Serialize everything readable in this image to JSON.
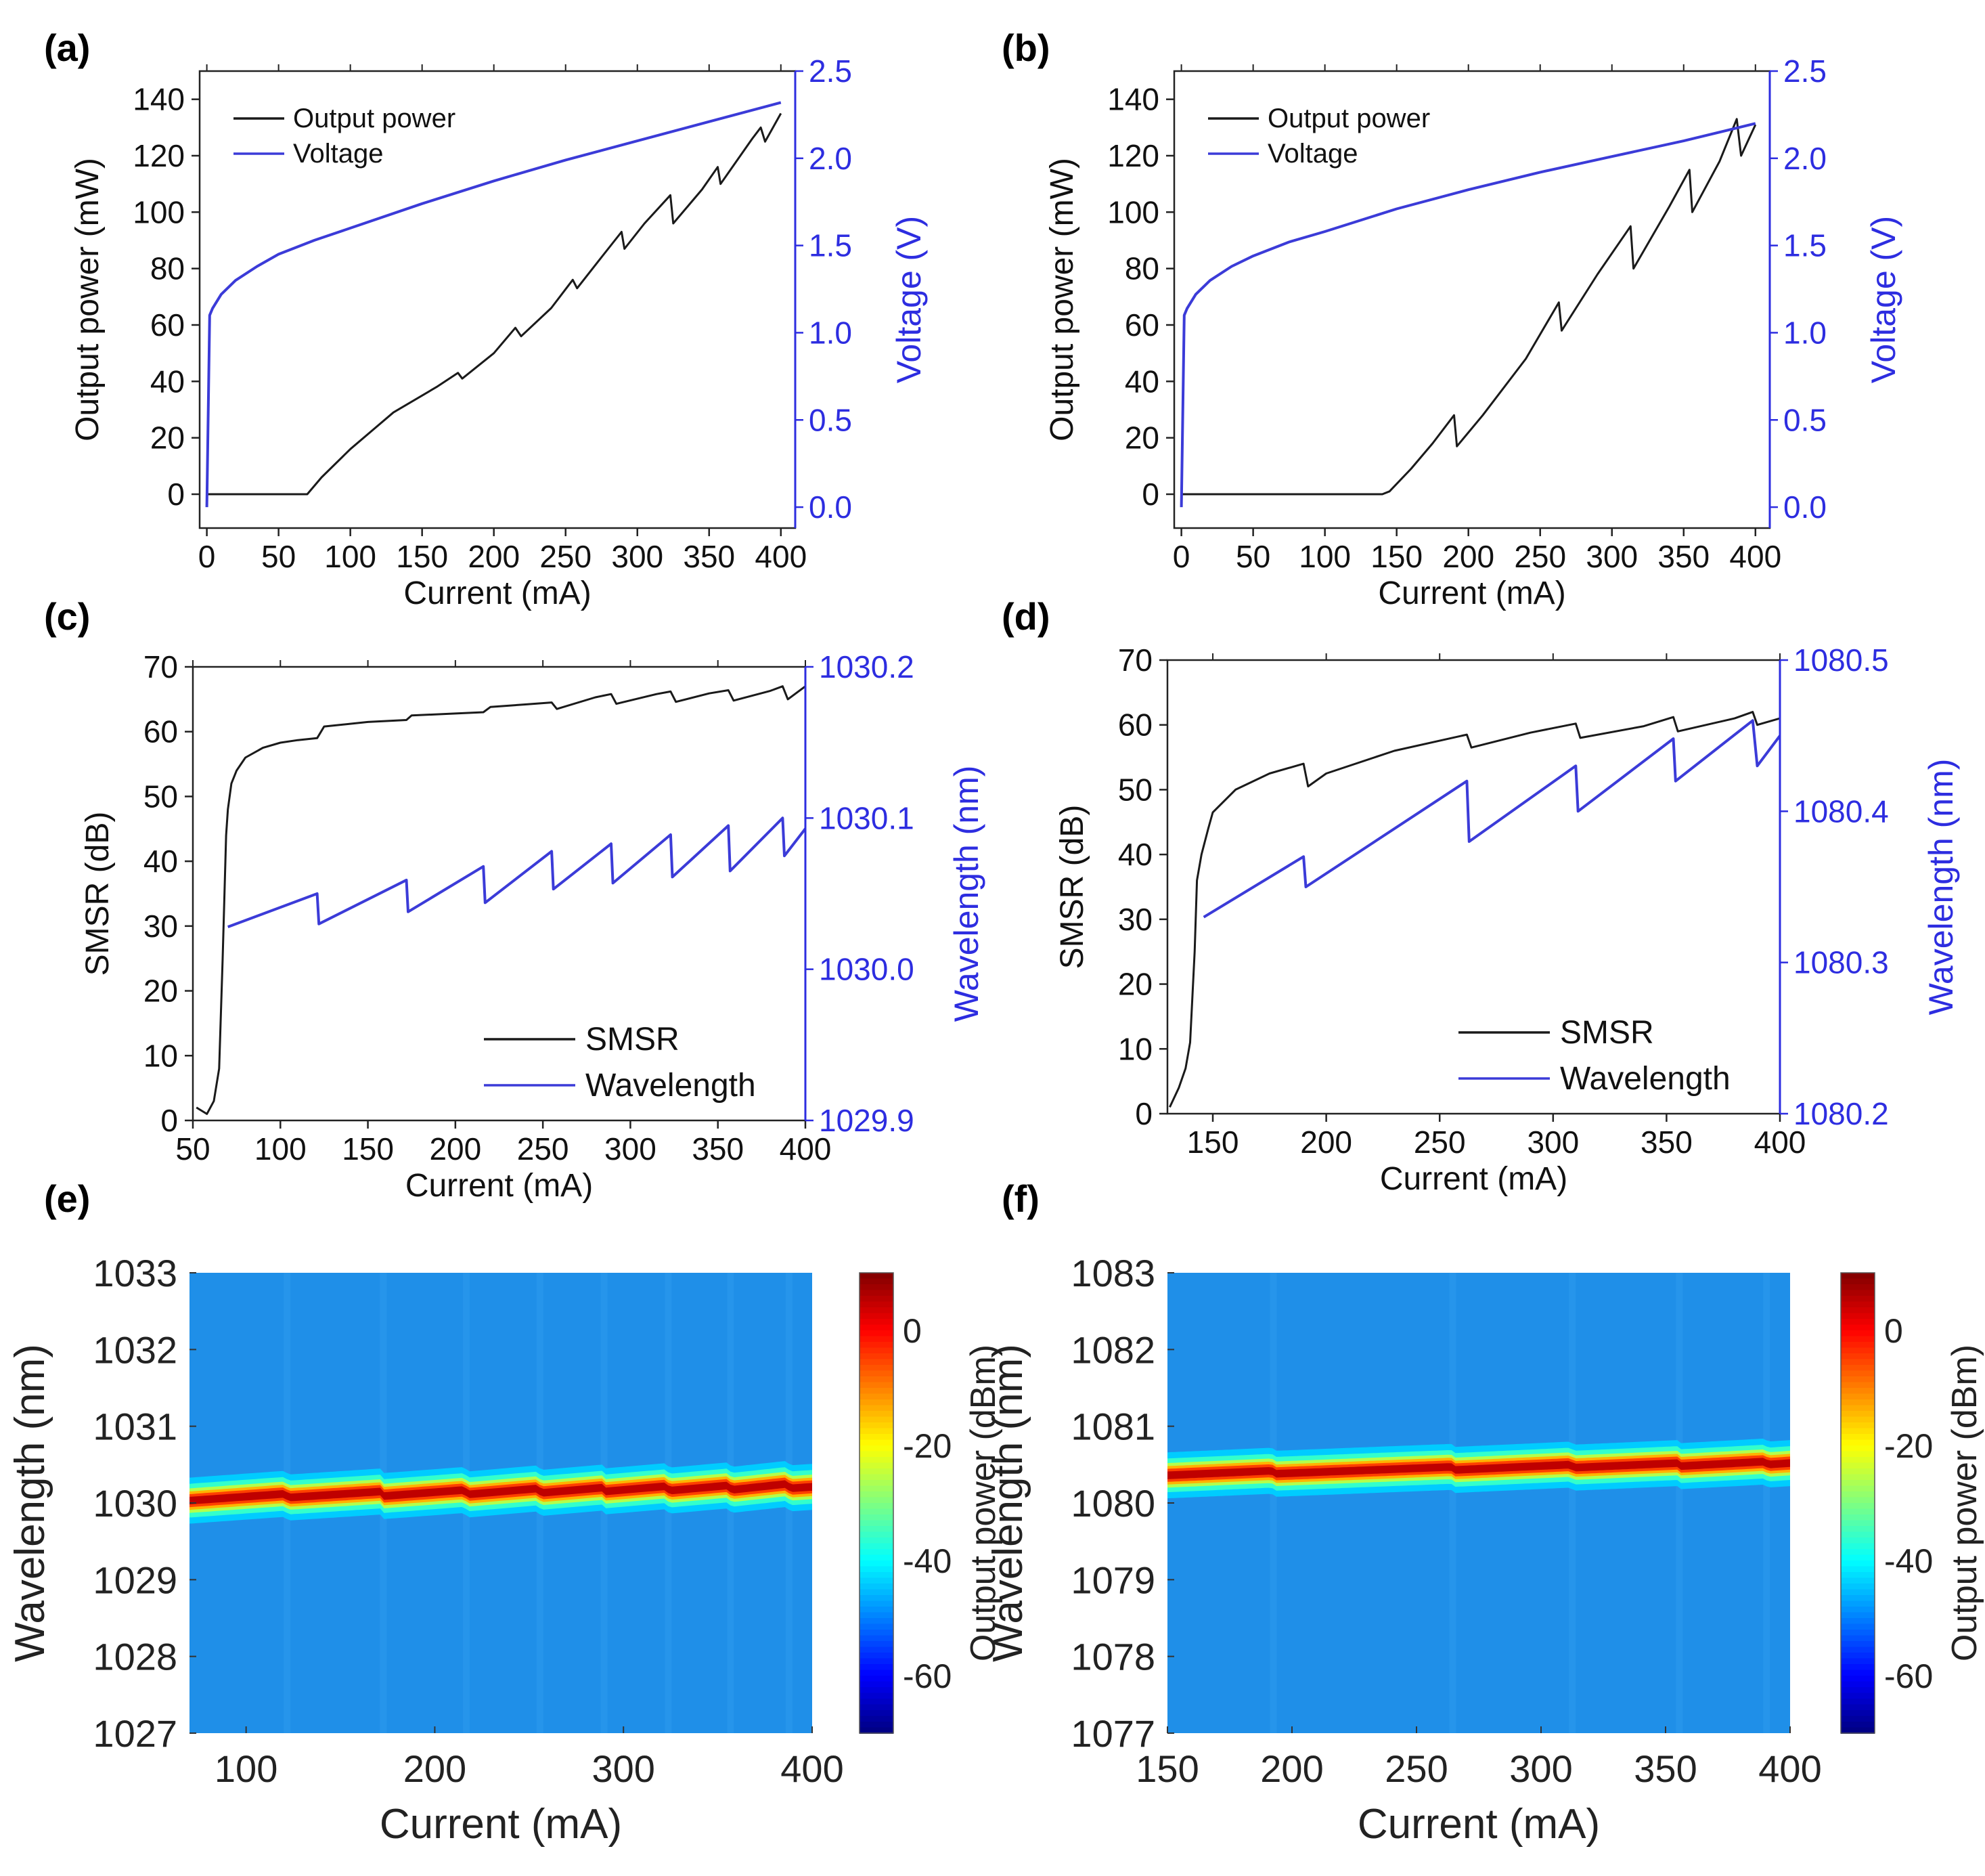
{
  "colors": {
    "black_series": "#1a1a1a",
    "blue_series": "#3b3bd8",
    "blue_axis": "#2d2de0",
    "heatmap_background": "#1f8fe8"
  },
  "chart_data": [
    {
      "id": "a",
      "panel_label": "(a)",
      "type": "line",
      "xlabel": "Current (mA)",
      "ylabel": "Output power (mW)",
      "y2label": "Voltage (V)",
      "xlim": [
        -5,
        410
      ],
      "ylim": [
        -12,
        150
      ],
      "y2lim": [
        -0.12,
        2.5
      ],
      "xticks": [
        0,
        50,
        100,
        150,
        200,
        250,
        300,
        350,
        400
      ],
      "yticks": [
        0,
        20,
        40,
        60,
        80,
        100,
        120,
        140
      ],
      "y2ticks": [
        0.0,
        0.5,
        1.0,
        1.5,
        2.0,
        2.5
      ],
      "legend": [
        "Output power",
        "Voltage"
      ],
      "series": [
        {
          "name": "Output power",
          "axis": "left",
          "color": "#1a1a1a",
          "x": [
            0,
            70,
            80,
            100,
            130,
            160,
            175,
            178,
            200,
            215,
            219,
            240,
            255,
            258,
            275,
            289,
            291,
            305,
            323,
            325,
            345,
            356,
            358,
            380,
            386,
            389,
            400
          ],
          "y": [
            0,
            0,
            6,
            16,
            29,
            38,
            43,
            41,
            50,
            59,
            56,
            66,
            76,
            73,
            84,
            93,
            87,
            96,
            106,
            96,
            108,
            116,
            110,
            126,
            130,
            125,
            135
          ]
        },
        {
          "name": "Voltage",
          "axis": "right",
          "color": "#3b3bd8",
          "x": [
            0,
            2,
            4,
            10,
            20,
            35,
            50,
            75,
            100,
            150,
            200,
            250,
            300,
            350,
            400
          ],
          "y": [
            0.0,
            1.1,
            1.14,
            1.22,
            1.3,
            1.38,
            1.45,
            1.53,
            1.6,
            1.74,
            1.87,
            1.99,
            2.1,
            2.21,
            2.32
          ]
        }
      ]
    },
    {
      "id": "b",
      "panel_label": "(b)",
      "type": "line",
      "xlabel": "Current (mA)",
      "ylabel": "Output power (mW)",
      "y2label": "Voltage (V)",
      "xlim": [
        -5,
        410
      ],
      "ylim": [
        -12,
        150
      ],
      "y2lim": [
        -0.12,
        2.5
      ],
      "xticks": [
        0,
        50,
        100,
        150,
        200,
        250,
        300,
        350,
        400
      ],
      "yticks": [
        0,
        20,
        40,
        60,
        80,
        100,
        120,
        140
      ],
      "y2ticks": [
        0.0,
        0.5,
        1.0,
        1.5,
        2.0,
        2.5
      ],
      "legend": [
        "Output power",
        "Voltage"
      ],
      "series": [
        {
          "name": "Output power",
          "axis": "left",
          "color": "#1a1a1a",
          "x": [
            0,
            140,
            145,
            160,
            175,
            190,
            192,
            210,
            240,
            263,
            265,
            290,
            313,
            315,
            340,
            354,
            356,
            375,
            387,
            390,
            400
          ],
          "y": [
            0,
            0,
            1,
            9,
            18,
            28,
            17,
            28,
            48,
            68,
            58,
            78,
            95,
            80,
            102,
            115,
            100,
            118,
            133,
            120,
            131
          ]
        },
        {
          "name": "Voltage",
          "axis": "right",
          "color": "#3b3bd8",
          "x": [
            0,
            2,
            4,
            10,
            20,
            35,
            50,
            75,
            100,
            150,
            200,
            250,
            300,
            350,
            400
          ],
          "y": [
            0.0,
            1.1,
            1.14,
            1.22,
            1.3,
            1.38,
            1.44,
            1.52,
            1.58,
            1.71,
            1.82,
            1.92,
            2.01,
            2.1,
            2.2
          ]
        }
      ]
    },
    {
      "id": "c",
      "panel_label": "(c)",
      "type": "line",
      "xlabel": "Current (mA)",
      "ylabel": "SMSR (dB)",
      "y2label": "Wavelength (nm)",
      "xlim": [
        50,
        400
      ],
      "ylim": [
        0,
        70
      ],
      "y2lim": [
        1029.9,
        1030.2
      ],
      "xticks": [
        50,
        100,
        150,
        200,
        250,
        300,
        350,
        400
      ],
      "yticks": [
        0,
        10,
        20,
        30,
        40,
        50,
        60,
        70
      ],
      "y2ticks": [
        "1029.9",
        "1030.0",
        "1030.1",
        "1030.2"
      ],
      "legend": [
        "SMSR",
        "Wavelength"
      ],
      "series": [
        {
          "name": "SMSR",
          "axis": "left",
          "color": "#1a1a1a",
          "x": [
            52,
            58,
            62,
            65,
            67,
            69,
            70,
            72,
            75,
            80,
            90,
            100,
            110,
            121,
            125,
            150,
            172,
            175,
            200,
            216,
            220,
            240,
            255,
            258,
            280,
            289,
            292,
            315,
            323,
            326,
            345,
            356,
            359,
            380,
            387,
            390,
            400
          ],
          "y": [
            2,
            1,
            3,
            8,
            25,
            44,
            48,
            52,
            54,
            56,
            57.5,
            58.3,
            58.7,
            59,
            60.8,
            61.5,
            61.8,
            62.5,
            62.8,
            63,
            63.8,
            64.2,
            64.5,
            63.5,
            65.3,
            65.8,
            64.3,
            65.8,
            66.2,
            64.6,
            65.9,
            66.4,
            64.8,
            66.3,
            67,
            65,
            67
          ]
        },
        {
          "name": "Wavelength",
          "axis": "right",
          "color": "#3b3bd8",
          "x": [
            70,
            121,
            122,
            172,
            173,
            216,
            217,
            255,
            256,
            289,
            290,
            323,
            324,
            356,
            357,
            387,
            388,
            400
          ],
          "y": [
            1030.028,
            1030.05,
            1030.03,
            1030.059,
            1030.038,
            1030.068,
            1030.044,
            1030.078,
            1030.053,
            1030.083,
            1030.057,
            1030.089,
            1030.061,
            1030.095,
            1030.065,
            1030.1,
            1030.075,
            1030.093
          ]
        }
      ]
    },
    {
      "id": "d",
      "panel_label": "(d)",
      "type": "line",
      "xlabel": "Current (mA)",
      "ylabel": "SMSR (dB)",
      "y2label": "Wavelength (nm)",
      "xlim": [
        130,
        400
      ],
      "ylim": [
        0,
        70
      ],
      "y2lim": [
        1080.2,
        1080.5
      ],
      "xticks": [
        150,
        200,
        250,
        300,
        350,
        400
      ],
      "yticks": [
        0,
        10,
        20,
        30,
        40,
        50,
        60,
        70
      ],
      "y2ticks": [
        "1080.2",
        "1080.3",
        "1080.4",
        "1080.5"
      ],
      "legend": [
        "SMSR",
        "Wavelength"
      ],
      "series": [
        {
          "name": "SMSR",
          "axis": "left",
          "color": "#1a1a1a",
          "x": [
            131,
            135,
            138,
            140,
            142,
            143,
            145,
            148,
            150,
            160,
            175,
            190,
            192,
            200,
            230,
            262,
            264,
            290,
            310,
            312,
            340,
            353,
            355,
            380,
            388,
            390,
            400
          ],
          "y": [
            1,
            4,
            7,
            11,
            25,
            36,
            40,
            44,
            46.5,
            50,
            52.5,
            54,
            50.5,
            52.5,
            56,
            58.5,
            56.5,
            58.8,
            60.2,
            58,
            59.8,
            61.2,
            59,
            61,
            62,
            60,
            61
          ]
        },
        {
          "name": "Wavelength",
          "axis": "right",
          "color": "#3b3bd8",
          "x": [
            146,
            190,
            191,
            262,
            263,
            310,
            311,
            353,
            354,
            388,
            390,
            400
          ],
          "y": [
            1080.33,
            1080.37,
            1080.35,
            1080.42,
            1080.38,
            1080.43,
            1080.4,
            1080.448,
            1080.42,
            1080.46,
            1080.43,
            1080.45
          ]
        }
      ]
    },
    {
      "id": "e",
      "panel_label": "(e)",
      "type": "heatmap",
      "xlabel": "Current (mA)",
      "ylabel": "Wavelength (nm)",
      "colorbar_label": "Output power (dBm)",
      "xlim": [
        70,
        400
      ],
      "ylim": [
        1027,
        1033
      ],
      "clim": [
        -70,
        10
      ],
      "xticks": [
        100,
        200,
        300,
        400
      ],
      "yticks": [
        1027,
        1028,
        1029,
        1030,
        1031,
        1032,
        1033
      ],
      "cticks": [
        0,
        -20,
        -40,
        -60
      ],
      "peak_x": [
        70,
        121,
        122,
        172,
        173,
        216,
        217,
        255,
        256,
        289,
        290,
        323,
        324,
        356,
        357,
        387,
        388,
        400
      ],
      "peak_wavelength": [
        1030.03,
        1030.12,
        1030.07,
        1030.15,
        1030.09,
        1030.17,
        1030.11,
        1030.19,
        1030.13,
        1030.2,
        1030.15,
        1030.22,
        1030.16,
        1030.23,
        1030.17,
        1030.25,
        1030.19,
        1030.21
      ]
    },
    {
      "id": "f",
      "panel_label": "(f)",
      "type": "heatmap",
      "xlabel": "Current (mA)",
      "ylabel": "Wavelength (nm)",
      "colorbar_label": "Output power (dBm)",
      "xlim": [
        150,
        400
      ],
      "ylim": [
        1077,
        1083
      ],
      "clim": [
        -70,
        10
      ],
      "xticks": [
        150,
        200,
        250,
        300,
        350,
        400
      ],
      "yticks": [
        1077,
        1078,
        1079,
        1080,
        1081,
        1082,
        1083
      ],
      "cticks": [
        0,
        -20,
        -40,
        -60
      ],
      "peak_x": [
        150,
        192,
        193,
        264,
        265,
        312,
        313,
        355,
        356,
        390,
        391,
        400
      ],
      "peak_wavelength": [
        1080.36,
        1080.42,
        1080.38,
        1080.47,
        1080.43,
        1080.5,
        1080.46,
        1080.52,
        1080.48,
        1080.54,
        1080.5,
        1080.52
      ]
    }
  ]
}
